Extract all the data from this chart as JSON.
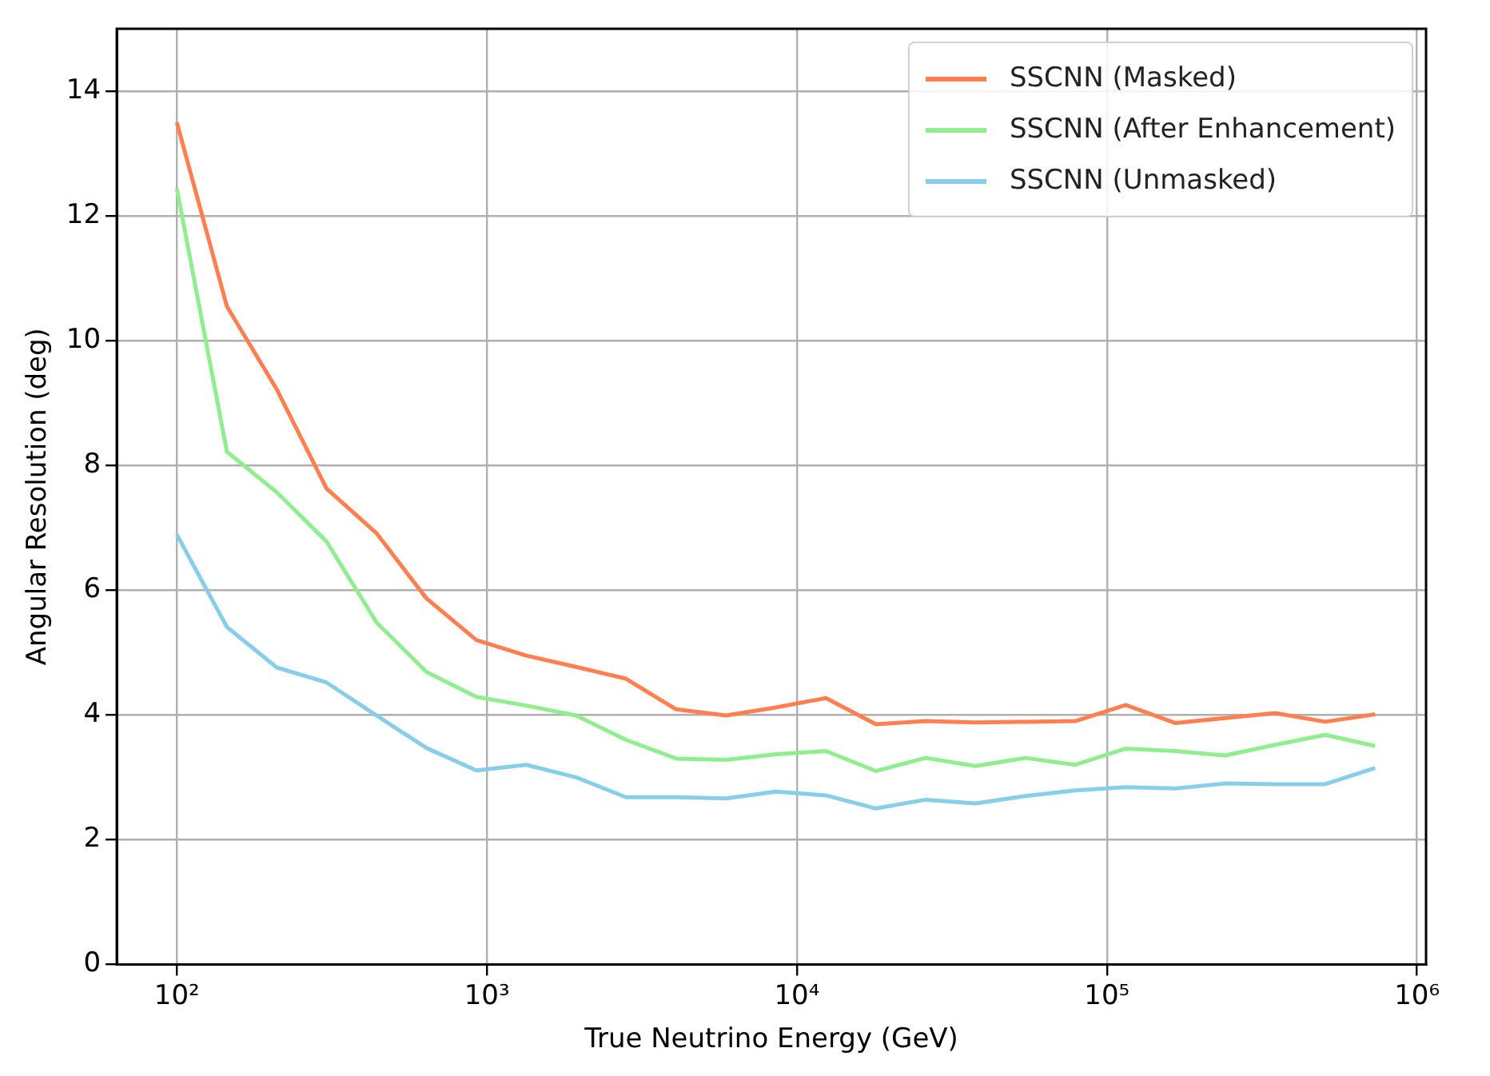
{
  "chart_data": {
    "type": "line",
    "xlabel": "True Neutrino Energy (GeV)",
    "ylabel": "Angular Resolution (deg)",
    "x": [
      100,
      145,
      210,
      304,
      441,
      638,
      925,
      1340,
      1940,
      2810,
      4080,
      5910,
      8560,
      12400,
      18000,
      26000,
      37700,
      54600,
      79100,
      115000,
      166000,
      241000,
      349000,
      506000,
      733000
    ],
    "series": [
      {
        "name": "SSCNN (Masked)",
        "color": "#ff7f50",
        "values": [
          13.5,
          10.55,
          9.22,
          7.63,
          6.91,
          5.87,
          5.2,
          4.95,
          4.77,
          4.58,
          4.09,
          3.99,
          4.12,
          4.27,
          3.85,
          3.9,
          3.88,
          3.89,
          3.9,
          4.16,
          3.87,
          3.95,
          4.03,
          3.89,
          4.01
        ]
      },
      {
        "name": "SSCNN (After Enhancement)",
        "color": "#90ee90",
        "values": [
          12.44,
          8.22,
          7.57,
          6.78,
          5.48,
          4.69,
          4.29,
          4.15,
          3.99,
          3.6,
          3.3,
          3.28,
          3.37,
          3.42,
          3.1,
          3.31,
          3.18,
          3.31,
          3.2,
          3.46,
          3.42,
          3.35,
          3.52,
          3.68,
          3.5
        ]
      },
      {
        "name": "SSCNN (Unmasked)",
        "color": "#87ceeb",
        "values": [
          6.89,
          5.41,
          4.76,
          4.52,
          3.99,
          3.47,
          3.11,
          3.2,
          3.0,
          2.68,
          2.68,
          2.66,
          2.77,
          2.71,
          2.5,
          2.64,
          2.58,
          2.7,
          2.79,
          2.84,
          2.82,
          2.9,
          2.89,
          2.89,
          3.15
        ]
      }
    ],
    "log": "x",
    "xlim": [
      64,
      1070000
    ],
    "xticks": [
      {
        "value": 100,
        "label": "10²"
      },
      {
        "value": 1000,
        "label": "10³"
      },
      {
        "value": 10000,
        "label": "10⁴"
      },
      {
        "value": 100000,
        "label": "10⁵"
      },
      {
        "value": 1000000,
        "label": "10⁶"
      }
    ],
    "ylim": [
      0,
      15
    ],
    "yticks": [
      0,
      2,
      4,
      6,
      8,
      10,
      12,
      14
    ],
    "grid": true,
    "legend": "top right",
    "marker": "none",
    "line_style": "solid"
  }
}
